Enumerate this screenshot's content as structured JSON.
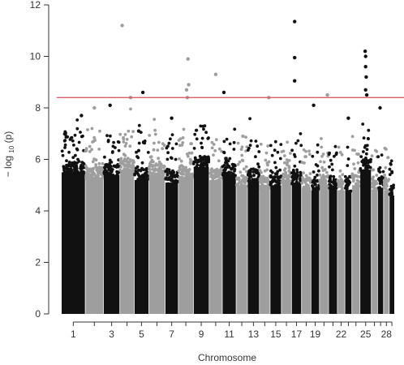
{
  "chart_data": {
    "type": "scatter",
    "title": "",
    "xlabel": "Chromosome",
    "ylabel_main": "− log",
    "ylabel_sub": "10",
    "ylabel_tail": "(p)",
    "ylim": [
      0,
      12
    ],
    "yticks": [
      "0",
      "2",
      "4",
      "6",
      "8",
      "10",
      "12"
    ],
    "xtick_labels": [
      "1",
      "3",
      "5",
      "7",
      "9",
      "11",
      "13",
      "15",
      "17",
      "19",
      "22",
      "25",
      "28"
    ],
    "chromosomes": [
      "1",
      "2",
      "3",
      "4",
      "5",
      "6",
      "7",
      "8",
      "9",
      "10",
      "11",
      "12",
      "13",
      "14",
      "15",
      "16",
      "17",
      "18",
      "19",
      "20",
      "21",
      "22",
      "23",
      "24",
      "25",
      "26",
      "27",
      "28",
      "29"
    ],
    "chromosome_span": [
      7.4,
      5.6,
      5.0,
      4.4,
      4.4,
      5.0,
      4.0,
      4.6,
      4.8,
      4.0,
      4.2,
      3.4,
      3.6,
      3.2,
      3.4,
      3.0,
      3.0,
      2.8,
      2.5,
      2.7,
      2.6,
      2.2,
      2.0,
      2.4,
      3.4,
      1.8,
      1.7,
      1.6,
      1.5
    ],
    "chromosome_bulk_top": [
      5.5,
      5.3,
      5.4,
      5.6,
      5.2,
      5.4,
      5.1,
      5.3,
      5.7,
      5.2,
      5.4,
      5.0,
      5.2,
      4.9,
      5.0,
      5.1,
      5.1,
      4.9,
      4.8,
      5.0,
      4.9,
      4.8,
      4.8,
      5.0,
      5.6,
      4.8,
      4.9,
      4.8,
      4.6
    ],
    "significance_threshold": 8.4,
    "series_colors": [
      "#111111",
      "#9e9e9e"
    ],
    "threshold_color": "#e05a6a",
    "top_hits": [
      {
        "chr": "1",
        "pos": 0.85,
        "y": 7.7
      },
      {
        "chr": "2",
        "pos": 0.5,
        "y": 8.0
      },
      {
        "chr": "3",
        "pos": 0.4,
        "y": 8.1
      },
      {
        "chr": "4",
        "pos": 0.15,
        "y": 11.2
      },
      {
        "chr": "4",
        "pos": 0.75,
        "y": 8.4
      },
      {
        "chr": "5",
        "pos": 0.6,
        "y": 8.6
      },
      {
        "chr": "5",
        "pos": 0.3,
        "y": 7.1
      },
      {
        "chr": "7",
        "pos": 0.5,
        "y": 7.6
      },
      {
        "chr": "8",
        "pos": 0.65,
        "y": 9.9
      },
      {
        "chr": "8",
        "pos": 0.7,
        "y": 8.9
      },
      {
        "chr": "8",
        "pos": 0.55,
        "y": 8.7
      },
      {
        "chr": "8",
        "pos": 0.6,
        "y": 8.4
      },
      {
        "chr": "10",
        "pos": 0.5,
        "y": 9.3
      },
      {
        "chr": "11",
        "pos": 0.1,
        "y": 8.6
      },
      {
        "chr": "12",
        "pos": 0.6,
        "y": 6.9
      },
      {
        "chr": "14",
        "pos": 0.9,
        "y": 8.4
      },
      {
        "chr": "17",
        "pos": 0.3,
        "y": 11.35
      },
      {
        "chr": "17",
        "pos": 0.3,
        "y": 9.95
      },
      {
        "chr": "17",
        "pos": 0.3,
        "y": 9.05
      },
      {
        "chr": "19",
        "pos": 0.3,
        "y": 8.1
      },
      {
        "chr": "20",
        "pos": 0.9,
        "y": 8.5
      },
      {
        "chr": "23",
        "pos": 0.5,
        "y": 7.6
      },
      {
        "chr": "25",
        "pos": 0.45,
        "y": 10.2
      },
      {
        "chr": "25",
        "pos": 0.5,
        "y": 10.0
      },
      {
        "chr": "25",
        "pos": 0.5,
        "y": 9.6
      },
      {
        "chr": "25",
        "pos": 0.55,
        "y": 9.2
      },
      {
        "chr": "25",
        "pos": 0.5,
        "y": 8.7
      },
      {
        "chr": "25",
        "pos": 0.6,
        "y": 8.5
      },
      {
        "chr": "27",
        "pos": 0.4,
        "y": 8.0
      }
    ]
  }
}
